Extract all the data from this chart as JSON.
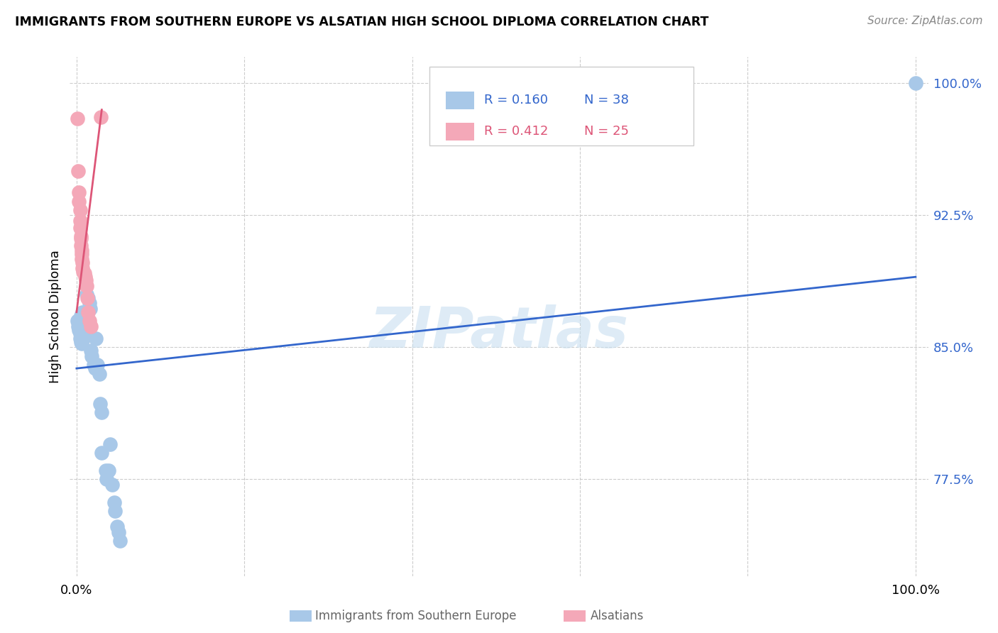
{
  "title": "IMMIGRANTS FROM SOUTHERN EUROPE VS ALSATIAN HIGH SCHOOL DIPLOMA CORRELATION CHART",
  "source": "Source: ZipAtlas.com",
  "ylabel": "High School Diploma",
  "ytick_values": [
    77.5,
    85.0,
    92.5,
    100.0
  ],
  "ytick_labels": [
    "77.5%",
    "85.0%",
    "92.5%",
    "100.0%"
  ],
  "y_min": 72.0,
  "y_max": 101.5,
  "x_min": -0.8,
  "x_max": 101.5,
  "legend_label_blue": "Immigrants from Southern Europe",
  "legend_label_pink": "Alsatians",
  "legend_r_blue": "R = 0.160",
  "legend_n_blue": "N = 38",
  "legend_r_pink": "R = 0.412",
  "legend_n_pink": "N = 25",
  "blue_color": "#a8c8e8",
  "pink_color": "#f4a8b8",
  "line_blue": "#3366cc",
  "line_pink": "#dd5577",
  "watermark": "ZIPatlas",
  "blue_points": [
    [
      0.1,
      86.5
    ],
    [
      0.2,
      86.2
    ],
    [
      0.3,
      86.0
    ],
    [
      0.4,
      85.8
    ],
    [
      0.4,
      85.5
    ],
    [
      0.5,
      86.8
    ],
    [
      0.5,
      85.3
    ],
    [
      0.6,
      85.2
    ],
    [
      0.6,
      86.3
    ],
    [
      0.7,
      87.0
    ],
    [
      0.8,
      85.8
    ],
    [
      0.9,
      85.6
    ],
    [
      1.0,
      86.5
    ],
    [
      1.2,
      88.0
    ],
    [
      1.4,
      87.8
    ],
    [
      1.5,
      87.5
    ],
    [
      1.6,
      87.2
    ],
    [
      1.7,
      84.8
    ],
    [
      1.8,
      84.5
    ],
    [
      2.0,
      84.0
    ],
    [
      2.2,
      83.8
    ],
    [
      2.3,
      85.5
    ],
    [
      2.5,
      84.0
    ],
    [
      2.7,
      83.5
    ],
    [
      2.8,
      81.8
    ],
    [
      3.0,
      81.3
    ],
    [
      3.0,
      79.0
    ],
    [
      3.5,
      78.0
    ],
    [
      3.6,
      77.5
    ],
    [
      3.8,
      78.0
    ],
    [
      4.0,
      79.5
    ],
    [
      4.2,
      77.2
    ],
    [
      4.5,
      76.2
    ],
    [
      4.6,
      75.7
    ],
    [
      4.8,
      74.8
    ],
    [
      5.0,
      74.5
    ],
    [
      5.2,
      74.0
    ],
    [
      100.0,
      100.0
    ]
  ],
  "pink_points": [
    [
      0.1,
      98.0
    ],
    [
      0.2,
      95.0
    ],
    [
      0.3,
      93.8
    ],
    [
      0.3,
      93.3
    ],
    [
      0.4,
      92.8
    ],
    [
      0.4,
      92.2
    ],
    [
      0.4,
      91.8
    ],
    [
      0.5,
      91.3
    ],
    [
      0.5,
      91.2
    ],
    [
      0.5,
      90.8
    ],
    [
      0.6,
      90.5
    ],
    [
      0.6,
      90.3
    ],
    [
      0.6,
      90.0
    ],
    [
      0.7,
      89.8
    ],
    [
      0.7,
      89.5
    ],
    [
      0.8,
      89.3
    ],
    [
      0.9,
      89.2
    ],
    [
      1.0,
      89.0
    ],
    [
      1.1,
      88.8
    ],
    [
      1.2,
      88.5
    ],
    [
      1.3,
      87.8
    ],
    [
      1.4,
      87.0
    ],
    [
      1.5,
      86.5
    ],
    [
      1.7,
      86.2
    ],
    [
      2.9,
      98.1
    ]
  ],
  "blue_line_x": [
    0.0,
    100.0
  ],
  "blue_line_y": [
    83.8,
    89.0
  ],
  "pink_line_x": [
    0.0,
    3.0
  ],
  "pink_line_y": [
    87.0,
    98.5
  ],
  "grid_color": "#cccccc",
  "grid_x_ticks": [
    0,
    20,
    40,
    60,
    80,
    100
  ],
  "background_color": "#ffffff"
}
